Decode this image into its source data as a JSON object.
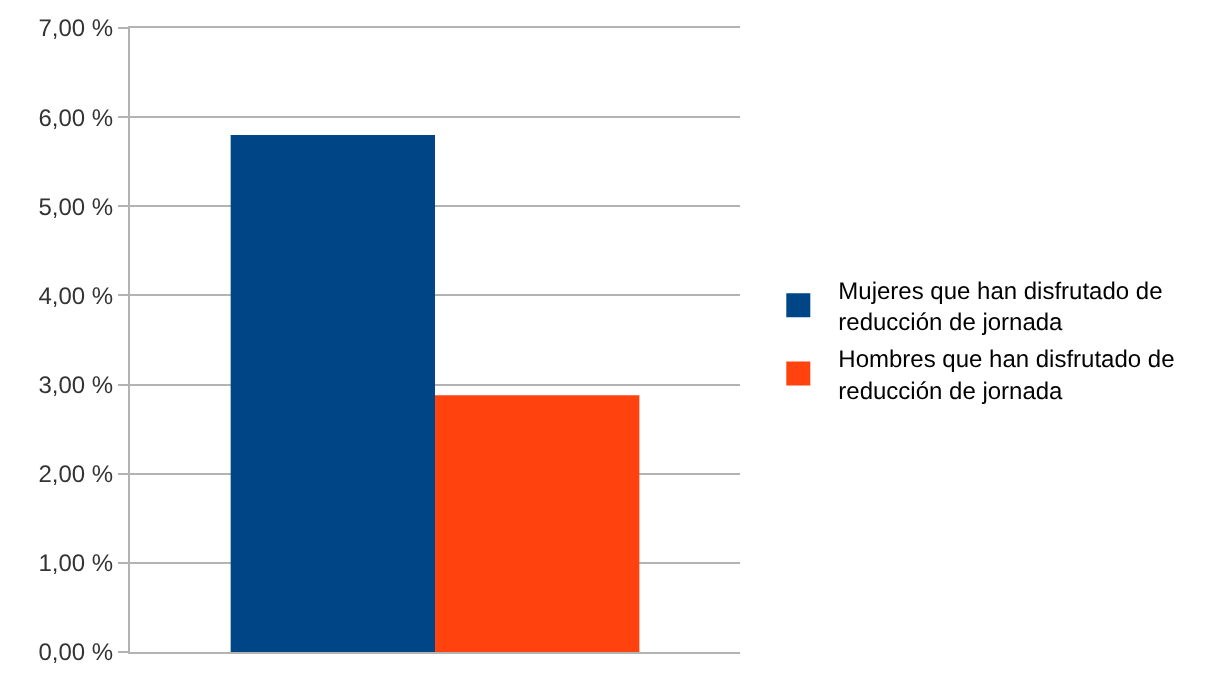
{
  "chart_data": {
    "type": "bar",
    "categories": [
      null
    ],
    "series": [
      {
        "name": "Mujeres que han disfrutado de reducción de jornada",
        "color": "#004586",
        "values": [
          5.8
        ]
      },
      {
        "name": "Hombres que han disfrutado de reducción de jornada",
        "color": "#ff420e",
        "values": [
          2.88
        ]
      }
    ],
    "ylim": [
      0,
      7
    ],
    "yticks": [
      {
        "value": 0,
        "label": "0,00 %"
      },
      {
        "value": 1,
        "label": "1,00 %"
      },
      {
        "value": 2,
        "label": "2,00 %"
      },
      {
        "value": 3,
        "label": "3,00 %"
      },
      {
        "value": 4,
        "label": "4,00 %"
      },
      {
        "value": 5,
        "label": "5,00 %"
      },
      {
        "value": 6,
        "label": "6,00 %"
      },
      {
        "value": 7,
        "label": "7,00 %"
      }
    ],
    "grid": "y",
    "legend": "right"
  }
}
